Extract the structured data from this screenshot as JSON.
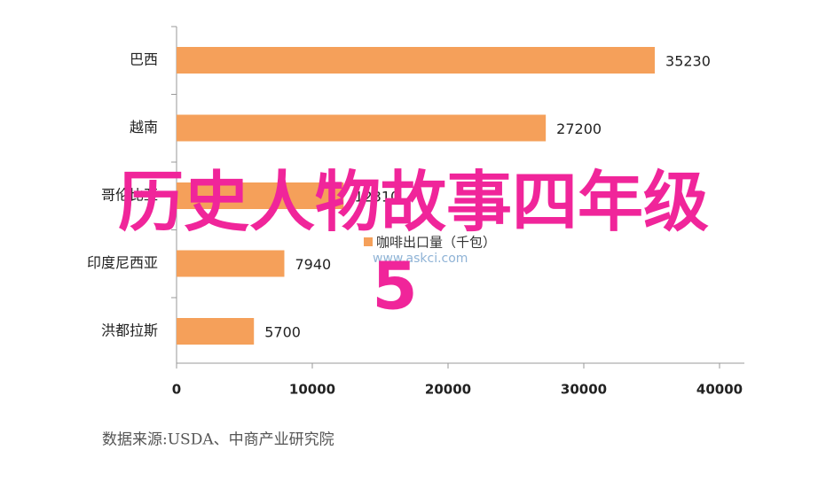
{
  "chart_data": {
    "type": "barh",
    "categories": [
      "巴西",
      "越南",
      "哥伦比亚",
      "印度尼西亚",
      "洪都拉斯"
    ],
    "values": [
      35230,
      27200,
      12310,
      7940,
      5700
    ],
    "color": "#f5a05a",
    "legend": "咖啡出口量（千包）",
    "watermark": "www.askci.com",
    "source": "数据来源:USDA、中商产业研究院",
    "overlay_lines": [
      "历史人物故事四年级",
      "5"
    ],
    "xlim": [
      0,
      40000
    ],
    "xticks": [
      0,
      10000,
      20000,
      30000,
      40000
    ]
  }
}
